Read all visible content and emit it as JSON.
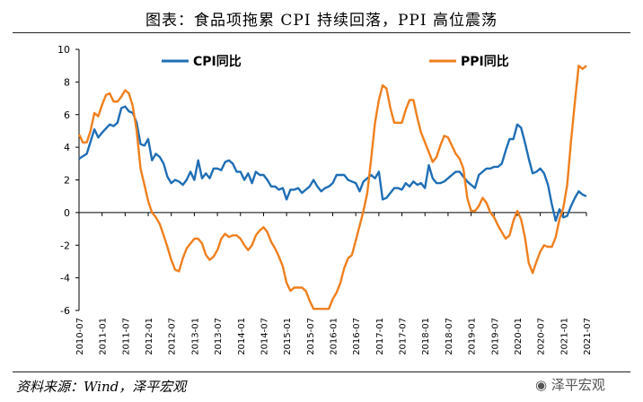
{
  "figure": {
    "title": "图表：食品项拖累 CPI 持续回落，PPI 高位震荡",
    "source": "资料来源：Wind，泽平宏观",
    "watermark": "泽平宏观"
  },
  "chart_data": {
    "type": "line",
    "title": "",
    "xlabel": "",
    "ylabel": "",
    "ylim": [
      -6,
      10
    ],
    "yticks": [
      -6,
      -4,
      -2,
      0,
      2,
      4,
      6,
      8,
      10
    ],
    "grid": false,
    "legend_position": "top",
    "xticklabels": [
      "2010-07",
      "2011-01",
      "2011-07",
      "2012-01",
      "2012-07",
      "2013-01",
      "2013-07",
      "2014-01",
      "2014-07",
      "2015-01",
      "2015-07",
      "2016-01",
      "2016-07",
      "2017-01",
      "2017-07",
      "2018-01",
      "2018-07",
      "2019-01",
      "2019-07",
      "2020-01",
      "2020-07",
      "2021-01",
      "2021-07"
    ],
    "series": [
      {
        "name": "CPI同比",
        "color": "#1f6eb5",
        "points": [
          [
            "2010-07",
            3.3
          ],
          [
            "2010-09",
            3.6
          ],
          [
            "2010-11",
            5.1
          ],
          [
            "2010-12",
            4.6
          ],
          [
            "2011-01",
            4.9
          ],
          [
            "2011-03",
            5.4
          ],
          [
            "2011-04",
            5.3
          ],
          [
            "2011-05",
            5.5
          ],
          [
            "2011-06",
            6.4
          ],
          [
            "2011-07",
            6.5
          ],
          [
            "2011-08",
            6.2
          ],
          [
            "2011-09",
            6.1
          ],
          [
            "2011-10",
            5.5
          ],
          [
            "2011-11",
            4.2
          ],
          [
            "2011-12",
            4.1
          ],
          [
            "2012-01",
            4.5
          ],
          [
            "2012-02",
            3.2
          ],
          [
            "2012-03",
            3.6
          ],
          [
            "2012-04",
            3.4
          ],
          [
            "2012-05",
            3.0
          ],
          [
            "2012-06",
            2.2
          ],
          [
            "2012-07",
            1.8
          ],
          [
            "2012-08",
            2.0
          ],
          [
            "2012-09",
            1.9
          ],
          [
            "2012-10",
            1.7
          ],
          [
            "2012-11",
            2.0
          ],
          [
            "2012-12",
            2.5
          ],
          [
            "2013-01",
            2.0
          ],
          [
            "2013-02",
            3.2
          ],
          [
            "2013-03",
            2.1
          ],
          [
            "2013-04",
            2.4
          ],
          [
            "2013-05",
            2.1
          ],
          [
            "2013-06",
            2.7
          ],
          [
            "2013-07",
            2.7
          ],
          [
            "2013-08",
            2.6
          ],
          [
            "2013-09",
            3.1
          ],
          [
            "2013-10",
            3.2
          ],
          [
            "2013-11",
            3.0
          ],
          [
            "2013-12",
            2.5
          ],
          [
            "2014-01",
            2.5
          ],
          [
            "2014-02",
            2.0
          ],
          [
            "2014-03",
            2.4
          ],
          [
            "2014-04",
            1.8
          ],
          [
            "2014-05",
            2.5
          ],
          [
            "2014-06",
            2.3
          ],
          [
            "2014-07",
            2.3
          ],
          [
            "2014-08",
            2.0
          ],
          [
            "2014-09",
            1.6
          ],
          [
            "2014-10",
            1.6
          ],
          [
            "2014-11",
            1.4
          ],
          [
            "2014-12",
            1.5
          ],
          [
            "2015-01",
            0.8
          ],
          [
            "2015-02",
            1.4
          ],
          [
            "2015-03",
            1.4
          ],
          [
            "2015-04",
            1.5
          ],
          [
            "2015-05",
            1.2
          ],
          [
            "2015-06",
            1.4
          ],
          [
            "2015-07",
            1.6
          ],
          [
            "2015-08",
            2.0
          ],
          [
            "2015-09",
            1.6
          ],
          [
            "2015-10",
            1.3
          ],
          [
            "2015-11",
            1.5
          ],
          [
            "2015-12",
            1.6
          ],
          [
            "2016-01",
            1.8
          ],
          [
            "2016-02",
            2.3
          ],
          [
            "2016-03",
            2.3
          ],
          [
            "2016-04",
            2.3
          ],
          [
            "2016-05",
            2.0
          ],
          [
            "2016-06",
            1.9
          ],
          [
            "2016-07",
            1.8
          ],
          [
            "2016-08",
            1.3
          ],
          [
            "2016-09",
            1.9
          ],
          [
            "2016-10",
            2.1
          ],
          [
            "2016-11",
            2.3
          ],
          [
            "2016-12",
            2.1
          ],
          [
            "2017-01",
            2.5
          ],
          [
            "2017-02",
            0.8
          ],
          [
            "2017-03",
            0.9
          ],
          [
            "2017-04",
            1.2
          ],
          [
            "2017-05",
            1.5
          ],
          [
            "2017-06",
            1.5
          ],
          [
            "2017-07",
            1.4
          ],
          [
            "2017-08",
            1.8
          ],
          [
            "2017-09",
            1.6
          ],
          [
            "2017-10",
            1.9
          ],
          [
            "2017-11",
            1.7
          ],
          [
            "2017-12",
            1.8
          ],
          [
            "2018-01",
            1.5
          ],
          [
            "2018-02",
            2.9
          ],
          [
            "2018-03",
            2.1
          ],
          [
            "2018-04",
            1.8
          ],
          [
            "2018-05",
            1.8
          ],
          [
            "2018-06",
            1.9
          ],
          [
            "2018-07",
            2.1
          ],
          [
            "2018-08",
            2.3
          ],
          [
            "2018-09",
            2.5
          ],
          [
            "2018-10",
            2.5
          ],
          [
            "2018-11",
            2.2
          ],
          [
            "2018-12",
            1.9
          ],
          [
            "2019-01",
            1.7
          ],
          [
            "2019-02",
            1.5
          ],
          [
            "2019-03",
            2.3
          ],
          [
            "2019-04",
            2.5
          ],
          [
            "2019-05",
            2.7
          ],
          [
            "2019-06",
            2.7
          ],
          [
            "2019-07",
            2.8
          ],
          [
            "2019-08",
            2.8
          ],
          [
            "2019-09",
            3.0
          ],
          [
            "2019-10",
            3.8
          ],
          [
            "2019-11",
            4.5
          ],
          [
            "2019-12",
            4.5
          ],
          [
            "2020-01",
            5.4
          ],
          [
            "2020-02",
            5.2
          ],
          [
            "2020-03",
            4.3
          ],
          [
            "2020-04",
            3.3
          ],
          [
            "2020-05",
            2.4
          ],
          [
            "2020-06",
            2.5
          ],
          [
            "2020-07",
            2.7
          ],
          [
            "2020-08",
            2.4
          ],
          [
            "2020-09",
            1.7
          ],
          [
            "2020-10",
            0.5
          ],
          [
            "2020-11",
            -0.5
          ],
          [
            "2020-12",
            0.2
          ],
          [
            "2021-01",
            -0.3
          ],
          [
            "2021-02",
            -0.2
          ],
          [
            "2021-03",
            0.4
          ],
          [
            "2021-04",
            0.9
          ],
          [
            "2021-05",
            1.3
          ],
          [
            "2021-06",
            1.1
          ],
          [
            "2021-07",
            1.0
          ]
        ]
      },
      {
        "name": "PPI同比",
        "color": "#f07f1e",
        "points": [
          [
            "2010-07",
            4.8
          ],
          [
            "2010-08",
            4.3
          ],
          [
            "2010-09",
            4.3
          ],
          [
            "2010-10",
            5.0
          ],
          [
            "2010-11",
            6.1
          ],
          [
            "2010-12",
            5.9
          ],
          [
            "2011-01",
            6.6
          ],
          [
            "2011-02",
            7.2
          ],
          [
            "2011-03",
            7.3
          ],
          [
            "2011-04",
            6.8
          ],
          [
            "2011-05",
            6.8
          ],
          [
            "2011-06",
            7.1
          ],
          [
            "2011-07",
            7.5
          ],
          [
            "2011-08",
            7.3
          ],
          [
            "2011-09",
            6.5
          ],
          [
            "2011-10",
            5.0
          ],
          [
            "2011-11",
            2.7
          ],
          [
            "2011-12",
            1.7
          ],
          [
            "2012-01",
            0.7
          ],
          [
            "2012-02",
            0.0
          ],
          [
            "2012-03",
            -0.3
          ],
          [
            "2012-04",
            -0.7
          ],
          [
            "2012-05",
            -1.4
          ],
          [
            "2012-06",
            -2.1
          ],
          [
            "2012-07",
            -2.9
          ],
          [
            "2012-08",
            -3.5
          ],
          [
            "2012-09",
            -3.6
          ],
          [
            "2012-10",
            -2.8
          ],
          [
            "2012-11",
            -2.2
          ],
          [
            "2012-12",
            -1.9
          ],
          [
            "2013-01",
            -1.6
          ],
          [
            "2013-02",
            -1.6
          ],
          [
            "2013-03",
            -1.9
          ],
          [
            "2013-04",
            -2.6
          ],
          [
            "2013-05",
            -2.9
          ],
          [
            "2013-06",
            -2.7
          ],
          [
            "2013-07",
            -2.3
          ],
          [
            "2013-08",
            -1.6
          ],
          [
            "2013-09",
            -1.3
          ],
          [
            "2013-10",
            -1.5
          ],
          [
            "2013-11",
            -1.4
          ],
          [
            "2013-12",
            -1.4
          ],
          [
            "2014-01",
            -1.6
          ],
          [
            "2014-02",
            -2.0
          ],
          [
            "2014-03",
            -2.3
          ],
          [
            "2014-04",
            -2.0
          ],
          [
            "2014-05",
            -1.4
          ],
          [
            "2014-06",
            -1.1
          ],
          [
            "2014-07",
            -0.9
          ],
          [
            "2014-08",
            -1.2
          ],
          [
            "2014-09",
            -1.8
          ],
          [
            "2014-10",
            -2.2
          ],
          [
            "2014-11",
            -2.7
          ],
          [
            "2014-12",
            -3.3
          ],
          [
            "2015-01",
            -4.3
          ],
          [
            "2015-02",
            -4.8
          ],
          [
            "2015-03",
            -4.6
          ],
          [
            "2015-04",
            -4.6
          ],
          [
            "2015-05",
            -4.6
          ],
          [
            "2015-06",
            -4.8
          ],
          [
            "2015-07",
            -5.4
          ],
          [
            "2015-08",
            -5.9
          ],
          [
            "2015-09",
            -5.9
          ],
          [
            "2015-10",
            -5.9
          ],
          [
            "2015-11",
            -5.9
          ],
          [
            "2015-12",
            -5.9
          ],
          [
            "2016-01",
            -5.3
          ],
          [
            "2016-02",
            -4.9
          ],
          [
            "2016-03",
            -4.3
          ],
          [
            "2016-04",
            -3.4
          ],
          [
            "2016-05",
            -2.8
          ],
          [
            "2016-06",
            -2.6
          ],
          [
            "2016-07",
            -1.7
          ],
          [
            "2016-08",
            -0.8
          ],
          [
            "2016-09",
            0.1
          ],
          [
            "2016-10",
            1.2
          ],
          [
            "2016-11",
            3.3
          ],
          [
            "2016-12",
            5.5
          ],
          [
            "2017-01",
            6.9
          ],
          [
            "2017-02",
            7.8
          ],
          [
            "2017-03",
            7.6
          ],
          [
            "2017-04",
            6.4
          ],
          [
            "2017-05",
            5.5
          ],
          [
            "2017-06",
            5.5
          ],
          [
            "2017-07",
            5.5
          ],
          [
            "2017-08",
            6.3
          ],
          [
            "2017-09",
            6.9
          ],
          [
            "2017-10",
            6.9
          ],
          [
            "2017-11",
            5.8
          ],
          [
            "2017-12",
            4.9
          ],
          [
            "2018-01",
            4.3
          ],
          [
            "2018-02",
            3.7
          ],
          [
            "2018-03",
            3.1
          ],
          [
            "2018-04",
            3.4
          ],
          [
            "2018-05",
            4.1
          ],
          [
            "2018-06",
            4.7
          ],
          [
            "2018-07",
            4.6
          ],
          [
            "2018-08",
            4.1
          ],
          [
            "2018-09",
            3.6
          ],
          [
            "2018-10",
            3.3
          ],
          [
            "2018-11",
            2.7
          ],
          [
            "2018-12",
            0.9
          ],
          [
            "2019-01",
            0.1
          ],
          [
            "2019-02",
            0.1
          ],
          [
            "2019-03",
            0.4
          ],
          [
            "2019-04",
            0.9
          ],
          [
            "2019-05",
            0.6
          ],
          [
            "2019-06",
            0.0
          ],
          [
            "2019-07",
            -0.3
          ],
          [
            "2019-08",
            -0.8
          ],
          [
            "2019-09",
            -1.2
          ],
          [
            "2019-10",
            -1.6
          ],
          [
            "2019-11",
            -1.4
          ],
          [
            "2019-12",
            -0.5
          ],
          [
            "2020-01",
            0.1
          ],
          [
            "2020-02",
            -0.4
          ],
          [
            "2020-03",
            -1.5
          ],
          [
            "2020-04",
            -3.1
          ],
          [
            "2020-05",
            -3.7
          ],
          [
            "2020-06",
            -3.0
          ],
          [
            "2020-07",
            -2.4
          ],
          [
            "2020-08",
            -2.0
          ],
          [
            "2020-09",
            -2.1
          ],
          [
            "2020-10",
            -2.1
          ],
          [
            "2020-11",
            -1.5
          ],
          [
            "2020-12",
            -0.4
          ],
          [
            "2021-01",
            0.3
          ],
          [
            "2021-02",
            1.7
          ],
          [
            "2021-03",
            4.4
          ],
          [
            "2021-04",
            6.8
          ],
          [
            "2021-05",
            9.0
          ],
          [
            "2021-06",
            8.8
          ],
          [
            "2021-07",
            9.0
          ]
        ]
      }
    ]
  }
}
